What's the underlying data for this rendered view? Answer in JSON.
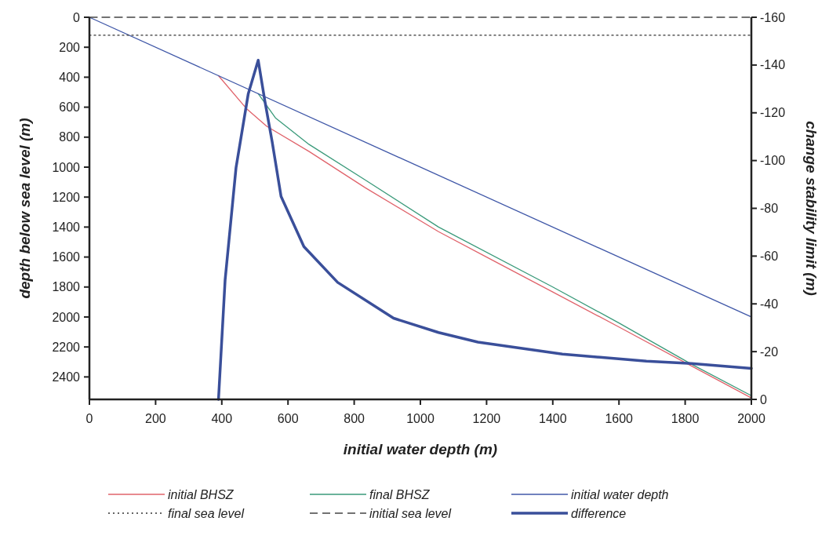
{
  "chart_data": {
    "type": "line",
    "xlabel": "initial water depth (m)",
    "ylabel": "depth below sea level (m)",
    "y2label": "change stability limit (m)",
    "xlim": [
      0,
      2000
    ],
    "xticks": [
      0,
      200,
      400,
      600,
      800,
      1000,
      1200,
      1400,
      1600,
      1800,
      2000
    ],
    "ylim": [
      2550,
      0
    ],
    "yticks": [
      0,
      200,
      400,
      600,
      800,
      1000,
      1200,
      1400,
      1600,
      1800,
      2000,
      2200,
      2400
    ],
    "y2lim": [
      0,
      -160
    ],
    "y2ticks": [
      -160,
      -140,
      -120,
      -100,
      -80,
      -60,
      -40,
      -20,
      0
    ],
    "legend": "bottom",
    "grid": false,
    "series": [
      {
        "name": "initial BHSZ",
        "color": "#e0636b",
        "line_style": "solid",
        "x": [
          390,
          476,
          536,
          664,
          833,
          1055,
          1200,
          1400,
          1600,
          1819,
          2000
        ],
        "values": [
          390,
          613,
          728,
          896,
          1137,
          1431,
          1600,
          1833,
          2067,
          2327,
          2540
        ]
      },
      {
        "name": "final BHSZ",
        "color": "#3a9a7a",
        "line_style": "solid",
        "x": [
          510,
          562,
          664,
          833,
          1055,
          1400,
          1600,
          1819,
          2000
        ],
        "values": [
          510,
          671,
          849,
          1085,
          1400,
          1800,
          2040,
          2315,
          2525
        ]
      },
      {
        "name": "initial water depth",
        "color": "#4058a8",
        "line_style": "solid",
        "x": [
          0,
          2000
        ],
        "values": [
          0,
          2000
        ]
      },
      {
        "name": "final sea level",
        "color": "#333333",
        "line_style": "dotted",
        "x": [
          0,
          2000
        ],
        "values": [
          120,
          120
        ]
      },
      {
        "name": "initial sea level",
        "color": "#444444",
        "line_style": "dashed",
        "x": [
          0,
          2000
        ],
        "values": [
          0,
          0
        ]
      },
      {
        "name": "difference",
        "color": "#3a4f9a",
        "line_style": "solid",
        "axis": "y2",
        "x": [
          390,
          410,
          443,
          480,
          510,
          530,
          552,
          579,
          648,
          750,
          919,
          1055,
          1174,
          1429,
          1683,
          1819,
          2000
        ],
        "values": [
          0,
          -50,
          -97,
          -128,
          -142,
          -125,
          -108,
          -85,
          -64,
          -49,
          -34,
          -28,
          -24,
          -19,
          -16,
          -15,
          -13
        ]
      }
    ]
  }
}
